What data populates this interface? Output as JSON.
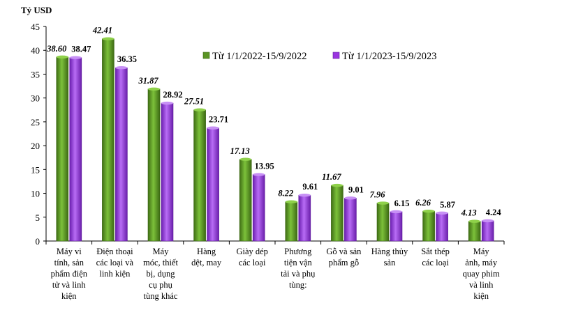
{
  "chart_data": {
    "type": "bar",
    "ylabel": "Tỷ USD",
    "ylim": [
      0,
      45
    ],
    "yticks": [
      "0",
      "5",
      "10",
      "15",
      "20",
      "25",
      "30",
      "35",
      "40",
      "45"
    ],
    "grid": false,
    "legend_position": "top-right",
    "categories": [
      [
        "Máy vi",
        "tính, sản",
        "phẩm điện",
        "tử và linh",
        "kiện"
      ],
      [
        "Điện thoại",
        "các loại và",
        "linh kiện"
      ],
      [
        "Máy",
        "móc, thiết",
        "bị, dụng",
        "cụ phụ",
        "tùng khác"
      ],
      [
        "Hàng",
        "dệt, may"
      ],
      [
        "Giày dép",
        "các loại"
      ],
      [
        "Phương",
        "tiện vận",
        "tải và phụ",
        "tùng:"
      ],
      [
        "Gỗ và sản",
        "phẩm gỗ"
      ],
      [
        "Hàng thủy",
        "sản"
      ],
      [
        "Sắt thép",
        "các loại"
      ],
      [
        "Máy",
        "ảnh, máy",
        "quay phim",
        "và linh",
        "kiện"
      ]
    ],
    "series": [
      {
        "name": "Từ 1/1/2022-15/9/2022",
        "color": "#5a9424",
        "values": [
          38.6,
          42.41,
          31.87,
          27.51,
          17.13,
          8.22,
          11.67,
          7.96,
          6.26,
          4.13
        ],
        "labels": [
          "38.60",
          "42.41",
          "31.87",
          "27.51",
          "17.13",
          "8.22",
          "11.67",
          "7.96",
          "6.26",
          "4.13"
        ]
      },
      {
        "name": "Từ 1/1/2023-15/9/2023",
        "color": "#9a35e0",
        "values": [
          38.47,
          36.35,
          28.92,
          23.71,
          13.95,
          9.61,
          9.01,
          6.15,
          5.87,
          4.24
        ],
        "labels": [
          "38.47",
          "36.35",
          "28.92",
          "23.71",
          "13.95",
          "9.61",
          "9.01",
          "6.15",
          "5.87",
          "4.24"
        ]
      }
    ]
  }
}
